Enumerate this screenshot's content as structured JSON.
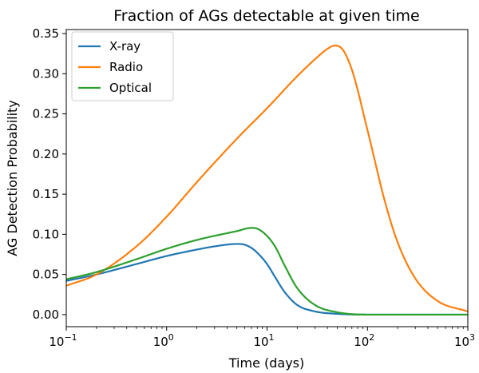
{
  "chart_data": {
    "type": "line",
    "title": "Fraction of AGs detectable at given time",
    "xlabel": "Time (days)",
    "ylabel": "AG Detection Probability",
    "xscale": "log",
    "xlim": [
      0.1,
      1000
    ],
    "ylim": [
      -0.015,
      0.355
    ],
    "x_ticks": [
      {
        "value": 0.1,
        "base": "10",
        "exp": "−1"
      },
      {
        "value": 1,
        "base": "10",
        "exp": "0"
      },
      {
        "value": 10,
        "base": "10",
        "exp": "1"
      },
      {
        "value": 100,
        "base": "10",
        "exp": "2"
      },
      {
        "value": 1000,
        "base": "10",
        "exp": "3"
      }
    ],
    "y_ticks": [
      {
        "value": 0.0,
        "label": "0.00"
      },
      {
        "value": 0.05,
        "label": "0.05"
      },
      {
        "value": 0.1,
        "label": "0.10"
      },
      {
        "value": 0.15,
        "label": "0.15"
      },
      {
        "value": 0.2,
        "label": "0.20"
      },
      {
        "value": 0.25,
        "label": "0.25"
      },
      {
        "value": 0.3,
        "label": "0.30"
      },
      {
        "value": 0.35,
        "label": "0.35"
      }
    ],
    "grid": false,
    "legend_position": "top-left",
    "series": [
      {
        "name": "X-ray",
        "color": "#1f77b4",
        "x": [
          0.1,
          0.2,
          0.5,
          1,
          2,
          3,
          5,
          6,
          7,
          8,
          10,
          12,
          15,
          20,
          30,
          50,
          100,
          1000
        ],
        "y": [
          0.042,
          0.05,
          0.063,
          0.073,
          0.081,
          0.085,
          0.088,
          0.087,
          0.083,
          0.077,
          0.063,
          0.047,
          0.028,
          0.012,
          0.004,
          0.001,
          0.0,
          0.0
        ]
      },
      {
        "name": "Radio",
        "color": "#ff7f0e",
        "x": [
          0.1,
          0.2,
          0.5,
          1,
          2,
          5,
          10,
          20,
          30,
          40,
          47,
          55,
          70,
          100,
          150,
          200,
          300,
          500,
          1000
        ],
        "y": [
          0.036,
          0.05,
          0.085,
          0.122,
          0.165,
          0.219,
          0.257,
          0.297,
          0.318,
          0.331,
          0.335,
          0.332,
          0.305,
          0.23,
          0.14,
          0.09,
          0.045,
          0.017,
          0.004
        ]
      },
      {
        "name": "Optical",
        "color": "#2ca02c",
        "x": [
          0.1,
          0.2,
          0.5,
          1,
          2,
          5,
          7,
          8,
          10,
          12,
          15,
          20,
          30,
          50,
          100,
          1000
        ],
        "y": [
          0.044,
          0.053,
          0.069,
          0.082,
          0.093,
          0.104,
          0.108,
          0.107,
          0.098,
          0.085,
          0.061,
          0.033,
          0.012,
          0.003,
          0.0,
          0.0
        ]
      }
    ]
  }
}
